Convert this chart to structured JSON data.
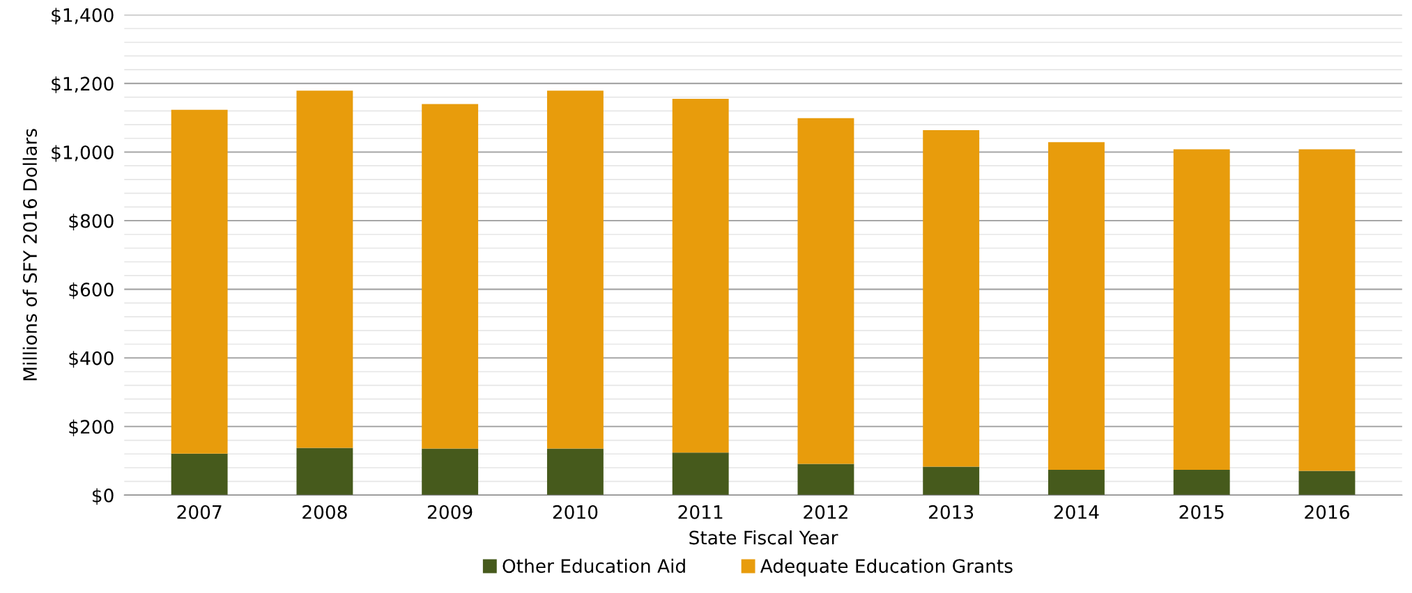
{
  "chart_data": {
    "type": "bar",
    "stacked": true,
    "xlabel": "State Fiscal Year",
    "ylabel": "Millions of SFY 2016 Dollars",
    "categories": [
      "2007",
      "2008",
      "2009",
      "2010",
      "2011",
      "2012",
      "2013",
      "2014",
      "2015",
      "2016"
    ],
    "series": [
      {
        "name": "Other Education Aid",
        "color": "#465a1c",
        "values": [
          121,
          138,
          136,
          136,
          124,
          91,
          83,
          74,
          74,
          71
        ]
      },
      {
        "name": "Adequate Education Grants",
        "color": "#e89c0c",
        "values": [
          1002,
          1041,
          1004,
          1043,
          1031,
          1008,
          981,
          955,
          934,
          937
        ]
      }
    ],
    "ylim": [
      0,
      1400
    ],
    "yticks": [
      {
        "value": 0,
        "label": "$0"
      },
      {
        "value": 40,
        "label": null
      },
      {
        "value": 80,
        "label": null
      },
      {
        "value": 120,
        "label": null
      },
      {
        "value": 160,
        "label": null
      },
      {
        "value": 200,
        "label": "$200"
      },
      {
        "value": 240,
        "label": null
      },
      {
        "value": 280,
        "label": null
      },
      {
        "value": 320,
        "label": null
      },
      {
        "value": 360,
        "label": null
      },
      {
        "value": 400,
        "label": "$400"
      },
      {
        "value": 440,
        "label": null
      },
      {
        "value": 480,
        "label": null
      },
      {
        "value": 520,
        "label": null
      },
      {
        "value": 560,
        "label": null
      },
      {
        "value": 600,
        "label": "$600"
      },
      {
        "value": 640,
        "label": null
      },
      {
        "value": 680,
        "label": null
      },
      {
        "value": 720,
        "label": null
      },
      {
        "value": 760,
        "label": null
      },
      {
        "value": 800,
        "label": "$800"
      },
      {
        "value": 840,
        "label": null
      },
      {
        "value": 880,
        "label": null
      },
      {
        "value": 920,
        "label": null
      },
      {
        "value": 960,
        "label": null
      },
      {
        "value": 1000,
        "label": "$1,000"
      },
      {
        "value": 1040,
        "label": null
      },
      {
        "value": 1080,
        "label": null
      },
      {
        "value": 1120,
        "label": null
      },
      {
        "value": 1160,
        "label": null
      },
      {
        "value": 1200,
        "label": "$1,200"
      },
      {
        "value": 1240,
        "label": null
      },
      {
        "value": 1280,
        "label": null
      },
      {
        "value": 1320,
        "label": null
      },
      {
        "value": 1360,
        "label": null
      },
      {
        "value": 1400,
        "label": "$1,400"
      }
    ],
    "grid": "y",
    "legend": "bottom"
  }
}
